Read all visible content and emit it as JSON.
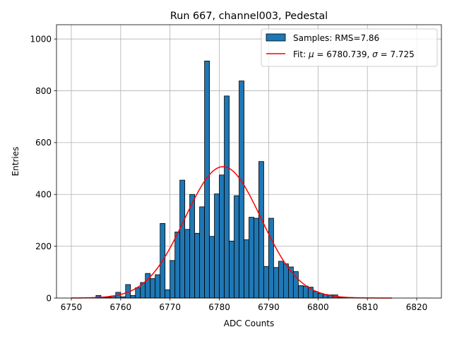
{
  "chart_data": {
    "type": "bar",
    "title": "Run 667, channel003, Pedestal",
    "xlabel": "ADC Counts",
    "ylabel": "Entries",
    "xlim": [
      6747,
      6825
    ],
    "ylim": [
      0,
      1055
    ],
    "xticks": [
      6750,
      6760,
      6770,
      6780,
      6790,
      6800,
      6810,
      6820
    ],
    "yticks": [
      0,
      200,
      400,
      600,
      800,
      1000
    ],
    "grid": true,
    "legend_position": "top-right",
    "bin_width": 1,
    "histogram": {
      "name": "Samples: RMS=7.86",
      "color": "#1f77b4",
      "bins": [
        {
          "x": 6755,
          "v": 10
        },
        {
          "x": 6756,
          "v": 2
        },
        {
          "x": 6757,
          "v": 3
        },
        {
          "x": 6758,
          "v": 8
        },
        {
          "x": 6759,
          "v": 22
        },
        {
          "x": 6760,
          "v": 5
        },
        {
          "x": 6761,
          "v": 52
        },
        {
          "x": 6762,
          "v": 10
        },
        {
          "x": 6763,
          "v": 40
        },
        {
          "x": 6764,
          "v": 60
        },
        {
          "x": 6765,
          "v": 95
        },
        {
          "x": 6766,
          "v": 75
        },
        {
          "x": 6767,
          "v": 90
        },
        {
          "x": 6768,
          "v": 288
        },
        {
          "x": 6769,
          "v": 32
        },
        {
          "x": 6770,
          "v": 145
        },
        {
          "x": 6771,
          "v": 255
        },
        {
          "x": 6772,
          "v": 455
        },
        {
          "x": 6773,
          "v": 265
        },
        {
          "x": 6774,
          "v": 400
        },
        {
          "x": 6775,
          "v": 250
        },
        {
          "x": 6776,
          "v": 352
        },
        {
          "x": 6777,
          "v": 915
        },
        {
          "x": 6778,
          "v": 238
        },
        {
          "x": 6779,
          "v": 402
        },
        {
          "x": 6780,
          "v": 475
        },
        {
          "x": 6781,
          "v": 780
        },
        {
          "x": 6782,
          "v": 220
        },
        {
          "x": 6783,
          "v": 395
        },
        {
          "x": 6784,
          "v": 838
        },
        {
          "x": 6785,
          "v": 225
        },
        {
          "x": 6786,
          "v": 312
        },
        {
          "x": 6787,
          "v": 308
        },
        {
          "x": 6788,
          "v": 527
        },
        {
          "x": 6789,
          "v": 122
        },
        {
          "x": 6790,
          "v": 308
        },
        {
          "x": 6791,
          "v": 118
        },
        {
          "x": 6792,
          "v": 142
        },
        {
          "x": 6793,
          "v": 132
        },
        {
          "x": 6794,
          "v": 120
        },
        {
          "x": 6795,
          "v": 102
        },
        {
          "x": 6796,
          "v": 48
        },
        {
          "x": 6797,
          "v": 46
        },
        {
          "x": 6798,
          "v": 42
        },
        {
          "x": 6799,
          "v": 25
        },
        {
          "x": 6800,
          "v": 18
        },
        {
          "x": 6801,
          "v": 14
        },
        {
          "x": 6802,
          "v": 12
        },
        {
          "x": 6803,
          "v": 12
        },
        {
          "x": 6804,
          "v": 3
        },
        {
          "x": 6805,
          "v": 2
        }
      ]
    },
    "fit": {
      "label_prefix": "Fit: ",
      "mu_symbol": "μ",
      "mu_text": " = 6780.739, ",
      "sigma_symbol": "σ",
      "sigma_text": " = 7.725",
      "color": "#ff0000",
      "mu": 6780.739,
      "sigma": 7.725,
      "amplitude": 507,
      "x_range": [
        6750,
        6815
      ]
    }
  }
}
